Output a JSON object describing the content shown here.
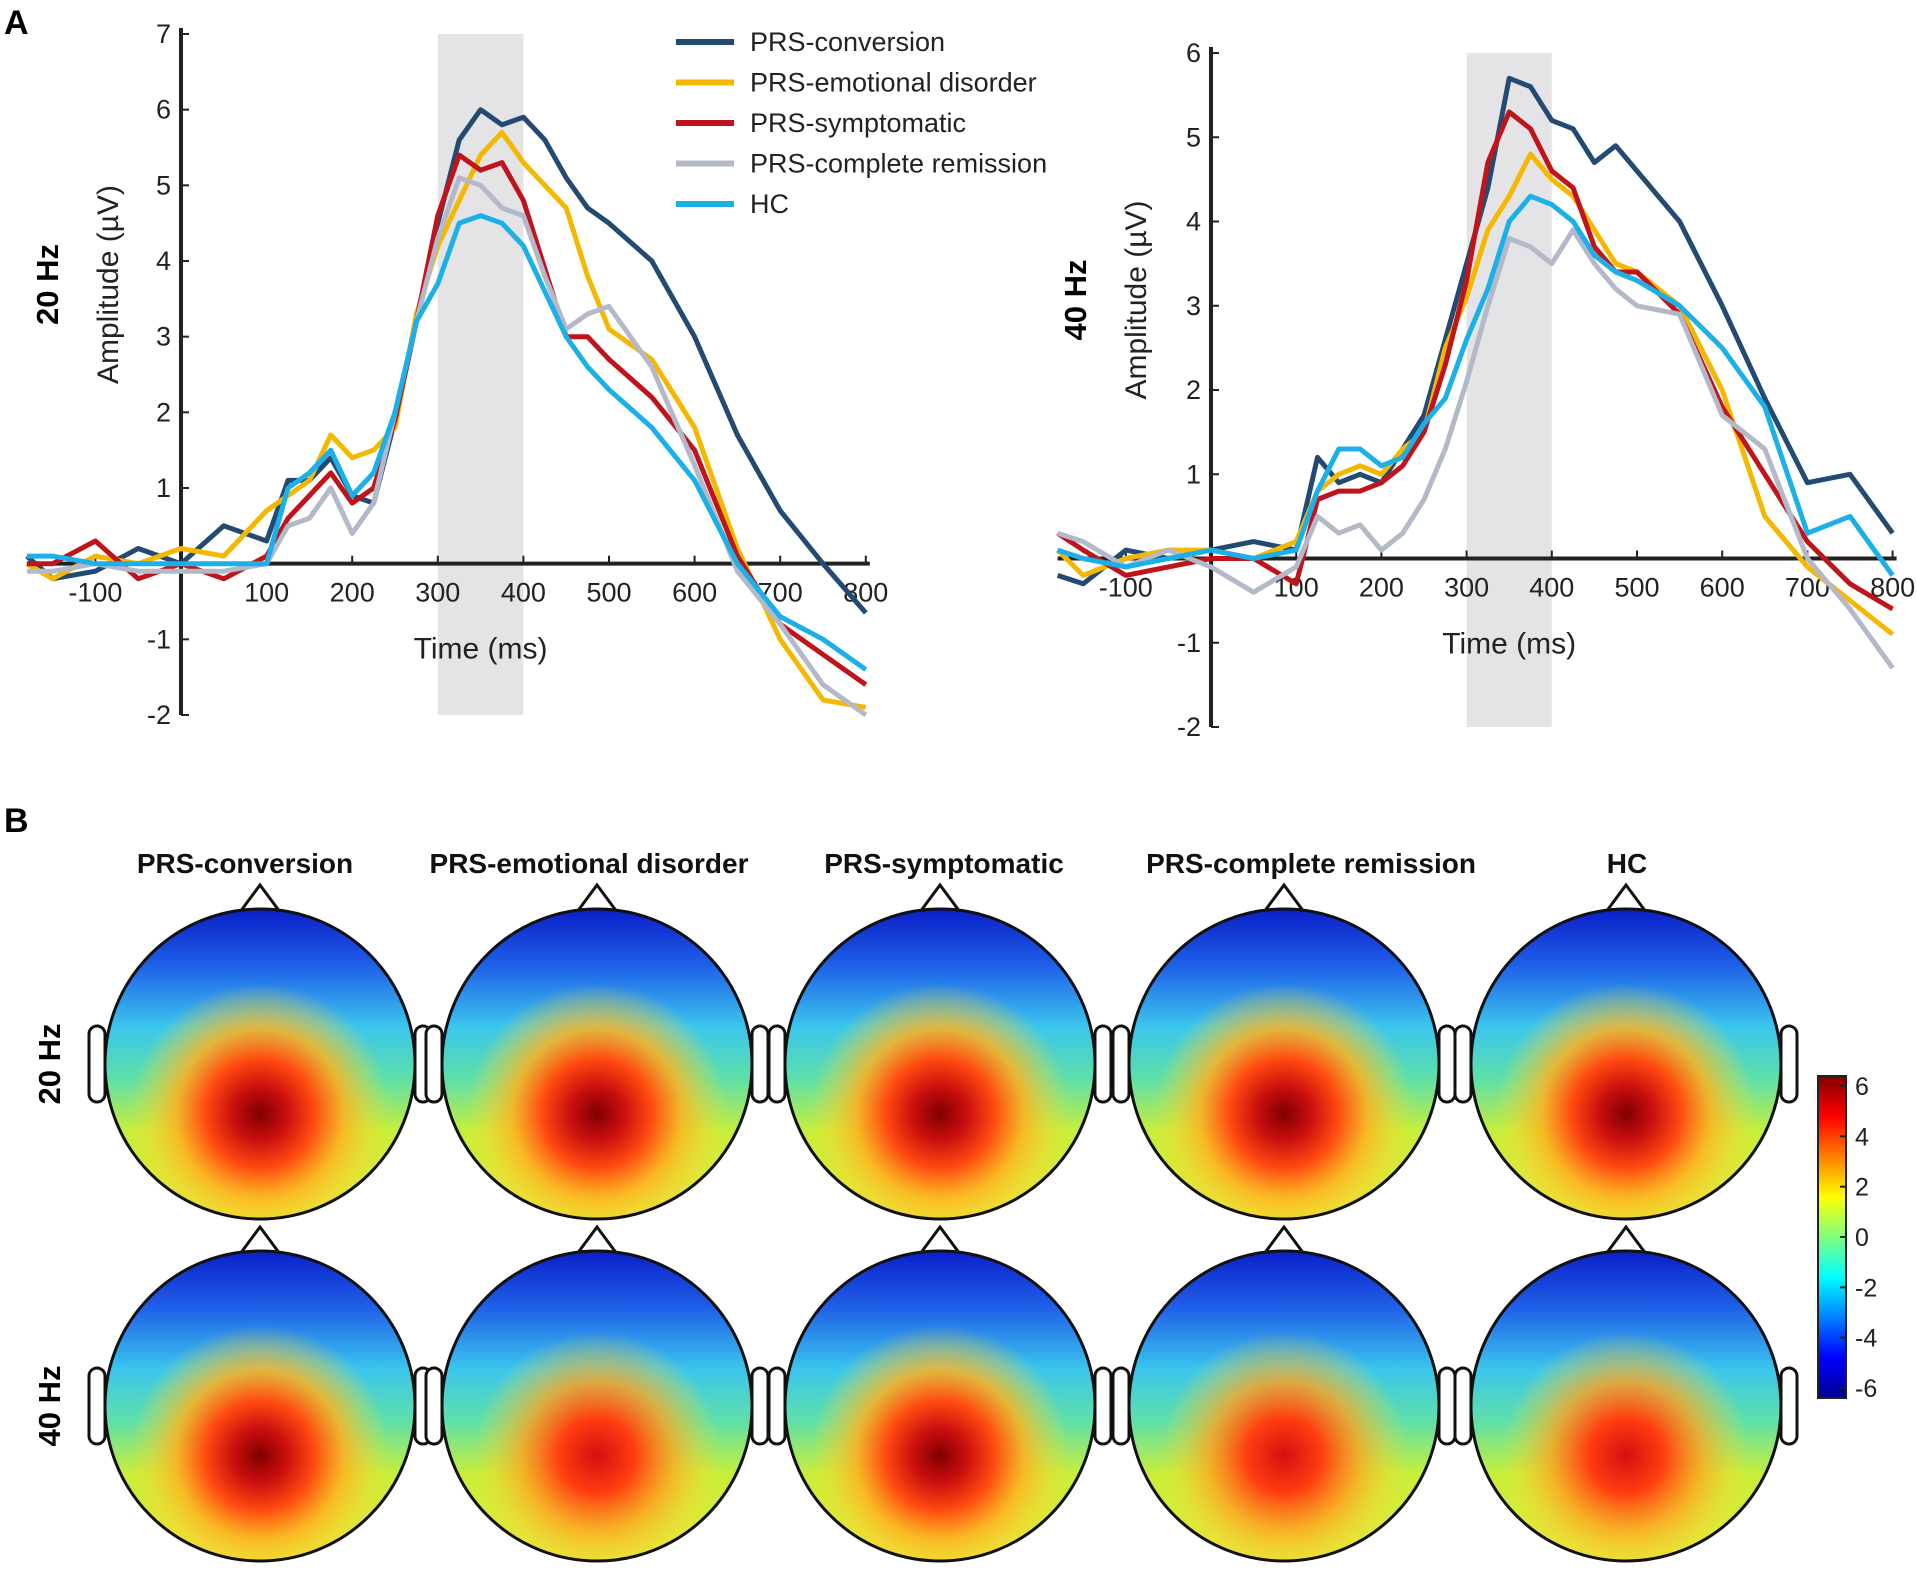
{
  "panels": {
    "a": "A",
    "b": "B"
  },
  "chart_data": [
    {
      "type": "line",
      "row_label": "20 Hz",
      "xlabel": "Time (ms)",
      "ylabel": "Amplitude (µV)",
      "xlim": [
        -180,
        800
      ],
      "ylim": [
        -2,
        7
      ],
      "xticks": [
        -100,
        100,
        200,
        300,
        400,
        500,
        600,
        700,
        800
      ],
      "yticks": [
        -2,
        -1,
        1,
        2,
        3,
        4,
        5,
        6,
        7
      ],
      "shaded_window": [
        300,
        400
      ],
      "legend": "top-right",
      "x": [
        -180,
        -150,
        -100,
        -50,
        0,
        50,
        100,
        125,
        150,
        175,
        200,
        225,
        250,
        275,
        300,
        325,
        350,
        375,
        400,
        425,
        450,
        475,
        500,
        550,
        600,
        650,
        700,
        750,
        800
      ],
      "series": [
        {
          "name": "PRS-conversion",
          "color": "#224a72",
          "values": [
            0.1,
            -0.2,
            -0.1,
            0.2,
            0,
            0.5,
            0.3,
            1.1,
            1.1,
            1.4,
            0.9,
            0.8,
            1.9,
            3.2,
            4.5,
            5.6,
            6.0,
            5.8,
            5.9,
            5.6,
            5.1,
            4.7,
            4.5,
            4.0,
            3.0,
            1.7,
            0.7,
            0.0,
            -0.65
          ]
        },
        {
          "name": "PRS-emotional disorder",
          "color": "#f5b800",
          "values": [
            0.0,
            -0.2,
            0.1,
            0,
            0.2,
            0.1,
            0.7,
            0.9,
            1.1,
            1.7,
            1.4,
            1.5,
            1.8,
            3.3,
            4.2,
            4.8,
            5.4,
            5.7,
            5.3,
            5.0,
            4.7,
            3.8,
            3.1,
            2.7,
            1.8,
            0.2,
            -1.0,
            -1.8,
            -1.9
          ]
        },
        {
          "name": "PRS-symptomatic",
          "color": "#c0141c",
          "values": [
            0.0,
            0,
            0.3,
            -0.2,
            0,
            -0.2,
            0.1,
            0.6,
            0.9,
            1.2,
            0.8,
            1.0,
            1.9,
            3.2,
            4.6,
            5.4,
            5.2,
            5.3,
            4.8,
            3.9,
            3.0,
            3.0,
            2.7,
            2.2,
            1.5,
            0.1,
            -0.8,
            -1.2,
            -1.6
          ]
        },
        {
          "name": "PRS-complete remission",
          "color": "#b3b9c8",
          "values": [
            -0.1,
            -0.1,
            0.0,
            -0.1,
            -0.1,
            -0.1,
            0.0,
            0.5,
            0.6,
            1.0,
            0.4,
            0.8,
            2.0,
            3.2,
            4.3,
            5.1,
            5.0,
            4.7,
            4.6,
            3.8,
            3.1,
            3.3,
            3.4,
            2.6,
            1.3,
            -0.1,
            -0.8,
            -1.6,
            -2.0
          ]
        },
        {
          "name": "HC",
          "color": "#1cb0e8",
          "values": [
            0.1,
            0.1,
            0.0,
            0,
            0,
            0.0,
            0.0,
            1.0,
            1.2,
            1.5,
            0.9,
            1.2,
            2.0,
            3.2,
            3.7,
            4.5,
            4.6,
            4.5,
            4.2,
            3.6,
            3.0,
            2.6,
            2.3,
            1.8,
            1.1,
            0.0,
            -0.7,
            -1.0,
            -1.4
          ]
        }
      ]
    },
    {
      "type": "line",
      "row_label": "40 Hz",
      "xlabel": "Time (ms)",
      "ylabel": "Amplitude (µV)",
      "xlim": [
        -180,
        800
      ],
      "ylim": [
        -2,
        6
      ],
      "xticks": [
        -100,
        100,
        200,
        300,
        400,
        500,
        600,
        700,
        800
      ],
      "yticks": [
        -2,
        -1,
        1,
        2,
        3,
        4,
        5,
        6
      ],
      "shaded_window": [
        300,
        400
      ],
      "x": [
        -180,
        -150,
        -100,
        -50,
        0,
        50,
        100,
        125,
        150,
        175,
        200,
        225,
        250,
        275,
        300,
        325,
        350,
        375,
        400,
        425,
        450,
        475,
        500,
        550,
        600,
        650,
        700,
        750,
        800
      ],
      "series": [
        {
          "name": "PRS-conversion",
          "color": "#224a72",
          "values": [
            -0.2,
            -0.3,
            0.1,
            0.0,
            0.1,
            0.2,
            0.1,
            1.2,
            0.9,
            1.0,
            0.9,
            1.3,
            1.7,
            2.6,
            3.5,
            4.4,
            5.7,
            5.6,
            5.2,
            5.1,
            4.7,
            4.9,
            4.6,
            4.0,
            3.0,
            1.9,
            0.9,
            1.0,
            0.3
          ]
        },
        {
          "name": "PRS-emotional disorder",
          "color": "#f5b800",
          "values": [
            0.1,
            -0.2,
            0.0,
            0.1,
            0.1,
            0.0,
            0.2,
            0.8,
            1.0,
            1.1,
            1.0,
            1.3,
            1.5,
            2.5,
            3.1,
            3.9,
            4.3,
            4.8,
            4.5,
            4.3,
            3.9,
            3.5,
            3.4,
            3.0,
            2.0,
            0.5,
            -0.1,
            -0.5,
            -0.9
          ]
        },
        {
          "name": "PRS-symptomatic",
          "color": "#c0141c",
          "values": [
            0.3,
            0.1,
            -0.2,
            -0.1,
            0.0,
            0.0,
            -0.3,
            0.7,
            0.8,
            0.8,
            0.9,
            1.1,
            1.5,
            2.3,
            3.3,
            4.7,
            5.3,
            5.1,
            4.6,
            4.4,
            3.7,
            3.4,
            3.4,
            2.9,
            1.8,
            1.0,
            0.2,
            -0.3,
            -0.6
          ]
        },
        {
          "name": "PRS-complete remission",
          "color": "#b3b9c8",
          "values": [
            0.3,
            0.2,
            -0.1,
            0.1,
            -0.1,
            -0.4,
            -0.1,
            0.5,
            0.3,
            0.4,
            0.1,
            0.3,
            0.7,
            1.3,
            2.1,
            3.0,
            3.8,
            3.7,
            3.5,
            3.9,
            3.5,
            3.2,
            3.0,
            2.9,
            1.7,
            1.3,
            0.0,
            -0.6,
            -1.3
          ]
        },
        {
          "name": "HC",
          "color": "#1cb0e8",
          "values": [
            0.1,
            0.0,
            -0.1,
            0.0,
            0.1,
            0.0,
            0.1,
            0.8,
            1.3,
            1.3,
            1.1,
            1.2,
            1.6,
            1.9,
            2.6,
            3.2,
            4.0,
            4.3,
            4.2,
            4.0,
            3.6,
            3.4,
            3.3,
            3.0,
            2.5,
            1.8,
            0.3,
            0.5,
            -0.2
          ]
        }
      ]
    }
  ],
  "topomaps": {
    "columns": [
      "PRS-conversion",
      "PRS-emotional disorder",
      "PRS-symptomatic",
      "PRS-complete remission",
      "HC"
    ],
    "rows": [
      "20 Hz",
      "40 Hz"
    ],
    "colorbar": {
      "ticks": [
        "6",
        "4",
        "2",
        "0",
        "-2",
        "-4",
        "-6"
      ],
      "range": [
        -6,
        6
      ],
      "colormap": "jet"
    }
  }
}
